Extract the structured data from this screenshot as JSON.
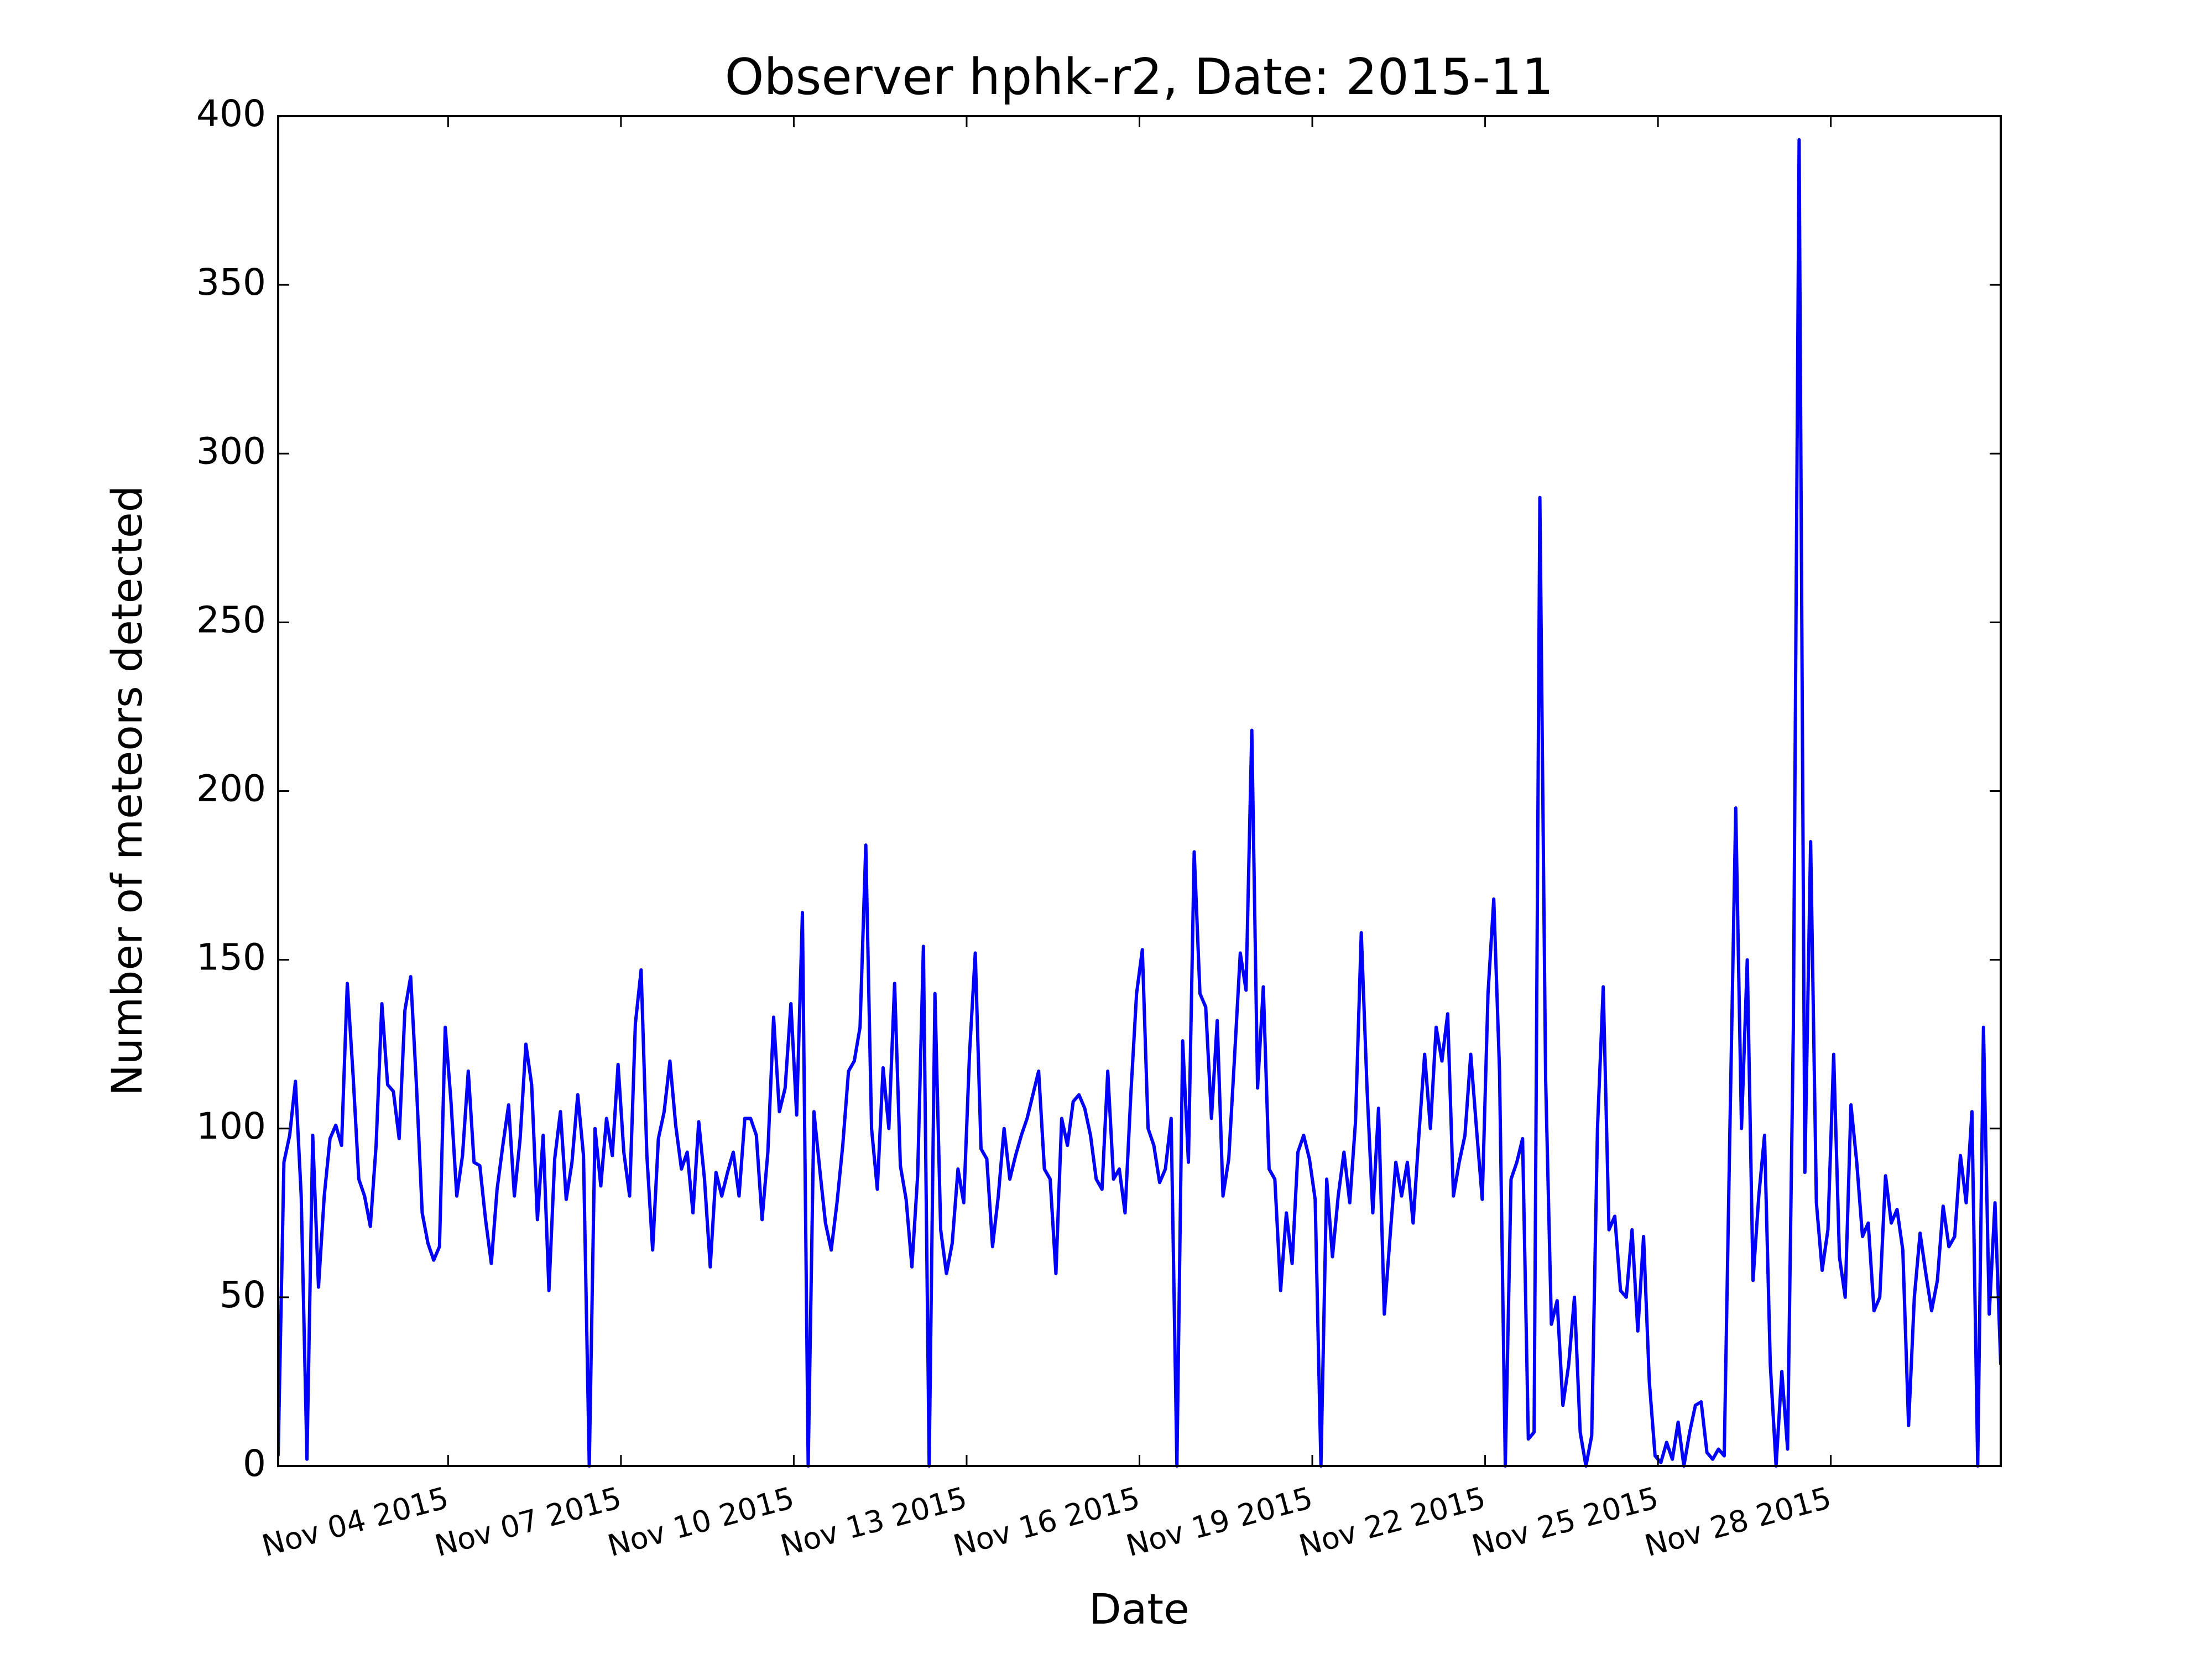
{
  "chart_data": {
    "type": "line",
    "title": "Observer hphk-r2, Date: 2015-11",
    "xlabel": "Date",
    "ylabel": "Number of meteors detected",
    "color": "#0000ff",
    "xlim": [
      1.05,
      30.95
    ],
    "ylim": [
      0,
      400
    ],
    "yticks": [
      0,
      50,
      100,
      150,
      200,
      250,
      300,
      350,
      400
    ],
    "xticks": [
      {
        "value": 4,
        "label": "Nov 04 2015"
      },
      {
        "value": 7,
        "label": "Nov 07 2015"
      },
      {
        "value": 10,
        "label": "Nov 10 2015"
      },
      {
        "value": 13,
        "label": "Nov 13 2015"
      },
      {
        "value": 16,
        "label": "Nov 16 2015"
      },
      {
        "value": 19,
        "label": "Nov 19 2015"
      },
      {
        "value": 22,
        "label": "Nov 22 2015"
      },
      {
        "value": 25,
        "label": "Nov 25 2015"
      },
      {
        "value": 28,
        "label": "Nov 28 2015"
      }
    ],
    "x": [
      1.05,
      1.15,
      1.25,
      1.35,
      1.45,
      1.55,
      1.65,
      1.75,
      1.85,
      1.95,
      2.05,
      2.15,
      2.25,
      2.35,
      2.45,
      2.55,
      2.65,
      2.75,
      2.85,
      2.95,
      3.05,
      3.15,
      3.25,
      3.35,
      3.45,
      3.55,
      3.65,
      3.75,
      3.85,
      3.95,
      4.05,
      4.15,
      4.25,
      4.35,
      4.45,
      4.55,
      4.65,
      4.75,
      4.85,
      4.95,
      5.05,
      5.15,
      5.25,
      5.35,
      5.45,
      5.55,
      5.65,
      5.75,
      5.85,
      5.95,
      6.05,
      6.15,
      6.25,
      6.35,
      6.45,
      6.55,
      6.65,
      6.75,
      6.85,
      6.95,
      7.05,
      7.15,
      7.25,
      7.35,
      7.45,
      7.55,
      7.65,
      7.75,
      7.85,
      7.95,
      8.05,
      8.15,
      8.25,
      8.35,
      8.45,
      8.55,
      8.65,
      8.75,
      8.85,
      8.95,
      9.05,
      9.15,
      9.25,
      9.35,
      9.45,
      9.55,
      9.65,
      9.75,
      9.85,
      9.95,
      10.05,
      10.15,
      10.25,
      10.35,
      10.45,
      10.55,
      10.65,
      10.75,
      10.85,
      10.95,
      11.05,
      11.15,
      11.25,
      11.35,
      11.45,
      11.55,
      11.65,
      11.75,
      11.85,
      11.95,
      12.05,
      12.15,
      12.25,
      12.35,
      12.45,
      12.55,
      12.65,
      12.75,
      12.85,
      12.95,
      13.05,
      13.15,
      13.25,
      13.35,
      13.45,
      13.55,
      13.65,
      13.75,
      13.85,
      13.95,
      14.05,
      14.15,
      14.25,
      14.35,
      14.45,
      14.55,
      14.65,
      14.75,
      14.85,
      14.95,
      15.05,
      15.15,
      15.25,
      15.35,
      15.45,
      15.55,
      15.65,
      15.75,
      15.85,
      15.95,
      16.05,
      16.15,
      16.25,
      16.35,
      16.45,
      16.55,
      16.65,
      16.75,
      16.85,
      16.95,
      17.05,
      17.15,
      17.25,
      17.35,
      17.45,
      17.55,
      17.65,
      17.75,
      17.85,
      17.95,
      18.05,
      18.15,
      18.25,
      18.35,
      18.45,
      18.55,
      18.65,
      18.75,
      18.85,
      18.95,
      19.05,
      19.15,
      19.25,
      19.35,
      19.45,
      19.55,
      19.65,
      19.75,
      19.85,
      19.95,
      20.05,
      20.15,
      20.25,
      20.35,
      20.45,
      20.55,
      20.65,
      20.75,
      20.85,
      20.95,
      21.05,
      21.15,
      21.25,
      21.35,
      21.45,
      21.55,
      21.65,
      21.75,
      21.85,
      21.95,
      22.05,
      22.15,
      22.25,
      22.35,
      22.45,
      22.55,
      22.65,
      22.75,
      22.85,
      22.95,
      23.05,
      23.15,
      23.25,
      23.35,
      23.45,
      23.55,
      23.65,
      23.75,
      23.85,
      23.95,
      24.05,
      24.15,
      24.25,
      24.35,
      24.45,
      24.55,
      24.65,
      24.75,
      24.85,
      24.95,
      25.05,
      25.15,
      25.25,
      25.35,
      25.45,
      25.55,
      25.65,
      25.75,
      25.85,
      25.95,
      26.05,
      26.15,
      26.25,
      26.35,
      26.45,
      26.55,
      26.65,
      26.75,
      26.85,
      26.95,
      27.05,
      27.15,
      27.25,
      27.35,
      27.45,
      27.55,
      27.65,
      27.75,
      27.85,
      27.95,
      28.05,
      28.15,
      28.25,
      28.35,
      28.45,
      28.55,
      28.65,
      28.75,
      28.85,
      28.95,
      29.05,
      29.15,
      29.25,
      29.35,
      29.45,
      29.55,
      29.65,
      29.75,
      29.85,
      29.95,
      30.05,
      30.15,
      30.25,
      30.35,
      30.45,
      30.55,
      30.65,
      30.75,
      30.85,
      30.95
    ],
    "values": [
      3,
      90,
      98,
      114,
      80,
      2,
      98,
      53,
      80,
      97,
      101,
      95,
      143,
      116,
      85,
      80,
      71,
      95,
      137,
      113,
      111,
      97,
      135,
      145,
      113,
      75,
      66,
      61,
      65,
      130,
      108,
      80,
      92,
      117,
      90,
      89,
      73,
      60,
      82,
      95,
      107,
      80,
      97,
      125,
      113,
      73,
      98,
      52,
      91,
      105,
      79,
      90,
      110,
      92,
      0,
      100,
      83,
      103,
      92,
      119,
      93,
      80,
      131,
      147,
      92,
      64,
      97,
      105,
      120,
      101,
      88,
      93,
      75,
      102,
      85,
      59,
      87,
      80,
      87,
      93,
      80,
      103,
      103,
      98,
      73,
      93,
      133,
      105,
      112,
      137,
      104,
      164,
      0,
      105,
      88,
      72,
      64,
      78,
      95,
      117,
      120,
      130,
      184,
      100,
      82,
      118,
      100,
      143,
      89,
      79,
      59,
      86,
      154,
      0,
      140,
      70,
      57,
      66,
      88,
      78,
      122,
      152,
      94,
      91,
      65,
      80,
      100,
      85,
      92,
      98,
      103,
      110,
      117,
      88,
      85,
      57,
      103,
      95,
      108,
      110,
      106,
      98,
      85,
      82,
      117,
      85,
      88,
      75,
      110,
      140,
      153,
      100,
      95,
      84,
      88,
      103,
      0,
      126,
      90,
      182,
      140,
      136,
      103,
      132,
      80,
      91,
      121,
      152,
      141,
      218,
      112,
      142,
      88,
      85,
      52,
      75,
      60,
      93,
      98,
      91,
      79,
      0,
      85,
      62,
      80,
      93,
      78,
      102,
      158,
      112,
      75,
      106,
      45,
      68,
      90,
      80,
      90,
      72,
      98,
      122,
      100,
      130,
      120,
      134,
      80,
      90,
      98,
      122,
      100,
      79,
      140,
      168,
      117,
      0,
      85,
      90,
      97,
      8,
      10,
      287,
      115,
      42,
      49,
      18,
      30,
      50,
      10,
      0,
      9,
      100,
      142,
      70,
      74,
      52,
      50,
      70,
      40,
      68,
      25,
      3,
      1,
      7,
      2,
      13,
      0,
      10,
      18,
      19,
      4,
      2,
      5,
      3,
      101,
      195,
      100,
      150,
      55,
      80,
      98,
      30,
      0,
      28,
      5,
      130,
      393,
      87,
      185,
      78,
      58,
      70,
      122,
      62,
      50,
      107,
      90,
      68,
      72,
      46,
      50,
      86,
      72,
      76,
      64,
      12,
      50,
      69,
      57,
      46,
      55,
      77,
      65,
      68,
      92,
      78,
      105,
      0,
      130,
      45,
      78,
      30
    ]
  }
}
